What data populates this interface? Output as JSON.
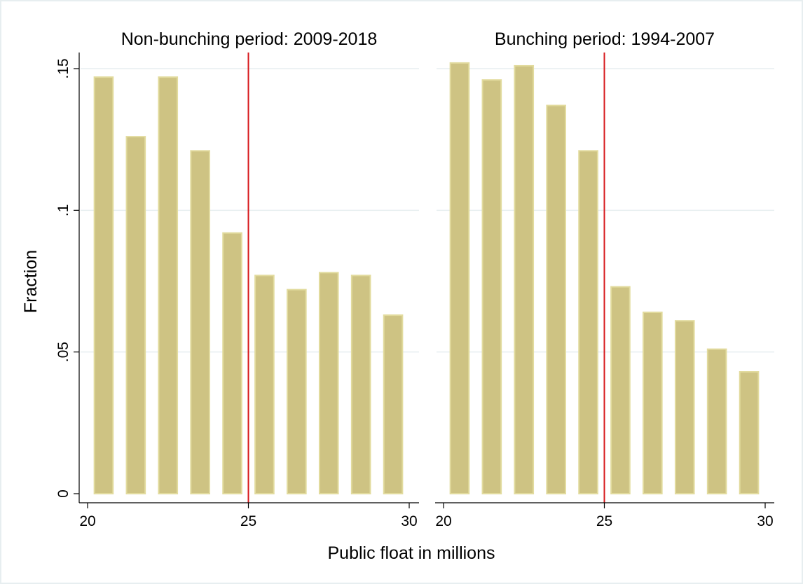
{
  "colors": {
    "bar_fill": "#cec383",
    "bar_outline": "#e2db9e",
    "reference_line": "#d7191c",
    "grid": "#e7eef0",
    "background": "#ffffff",
    "border": "#e7eef0"
  },
  "chart_data": [
    {
      "type": "bar",
      "title": "Non-bunching period: 2009-2018",
      "xlabel": "Public float in millions",
      "ylabel": "Fraction",
      "xlim": [
        19.7,
        30.4
      ],
      "ylim": [
        0,
        0.157
      ],
      "x_ticks": [
        20,
        25,
        30
      ],
      "x_tick_labels": [
        "20",
        "25",
        "30"
      ],
      "y_ticks": [
        0,
        0.05,
        0.1,
        0.15
      ],
      "y_tick_labels": [
        "0",
        ".05",
        ".1",
        ".15"
      ],
      "grid": true,
      "reference_line_x": 25,
      "bin_width": 1,
      "bar_width": 0.58,
      "x": [
        20.5,
        21.5,
        22.5,
        23.5,
        24.5,
        25.5,
        26.5,
        27.5,
        28.5,
        29.5
      ],
      "values": [
        0.147,
        0.126,
        0.147,
        0.121,
        0.092,
        0.077,
        0.072,
        0.078,
        0.077,
        0.063
      ]
    },
    {
      "type": "bar",
      "title": "Bunching period: 1994-2007",
      "xlabel": "Public float in millions",
      "ylabel": "Fraction",
      "xlim": [
        19.7,
        30.4
      ],
      "ylim": [
        0,
        0.157
      ],
      "x_ticks": [
        20,
        25,
        30
      ],
      "x_tick_labels": [
        "20",
        "25",
        "30"
      ],
      "y_ticks": [
        0,
        0.05,
        0.1,
        0.15
      ],
      "y_tick_labels": [
        "0",
        ".05",
        ".1",
        ".15"
      ],
      "grid": true,
      "reference_line_x": 25,
      "bin_width": 1,
      "bar_width": 0.58,
      "x": [
        20.5,
        21.5,
        22.5,
        23.5,
        24.5,
        25.5,
        26.5,
        27.5,
        28.5,
        29.5
      ],
      "values": [
        0.152,
        0.146,
        0.151,
        0.137,
        0.121,
        0.073,
        0.064,
        0.061,
        0.051,
        0.043
      ]
    }
  ]
}
